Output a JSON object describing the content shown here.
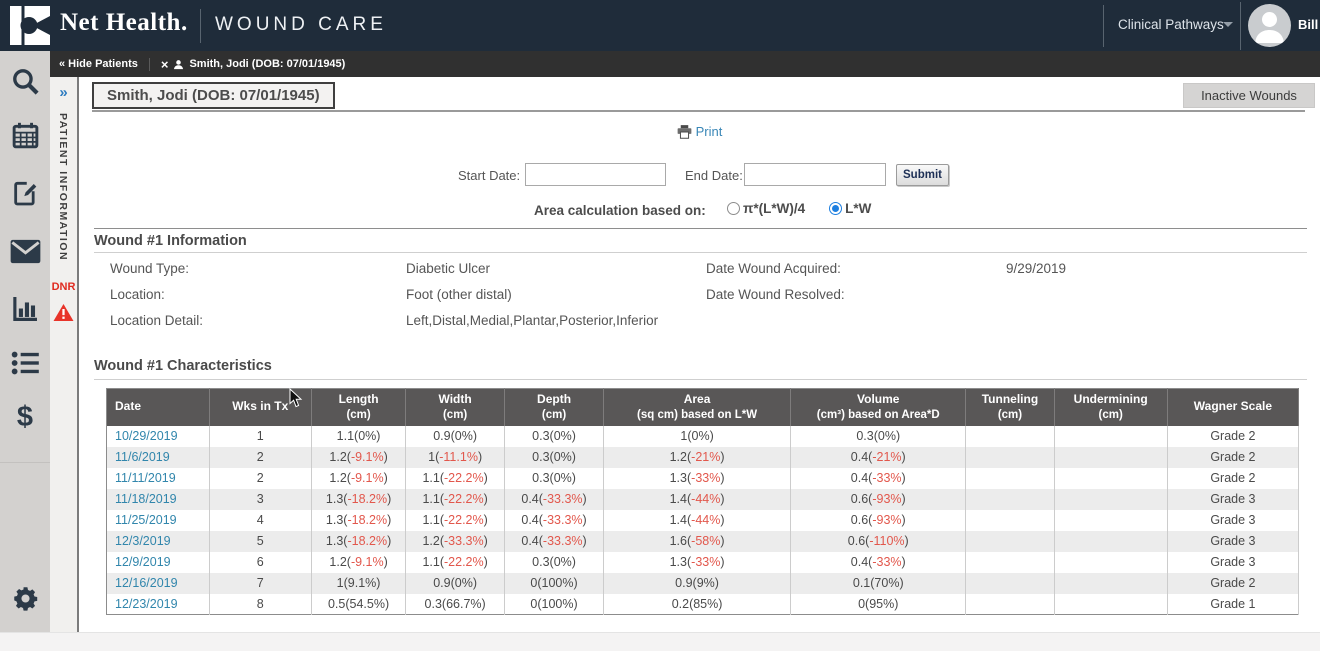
{
  "topbar": {
    "brand": "Net Health.",
    "product": "WOUND CARE",
    "nav_menu": "Clinical Pathways",
    "user_name": "Bill B"
  },
  "tabbar": {
    "hide_patients": "« Hide Patients",
    "close_glyph": "×",
    "patient_tab": "Smith, Jodi (DOB: 07/01/1945)"
  },
  "sidebar": {
    "icons": [
      "search-icon",
      "calendar-icon",
      "clipboard-edit-icon",
      "mail-icon",
      "bar-chart-icon",
      "list-icon",
      "billing-dollar-icon",
      "settings-gear-icon"
    ],
    "dollar_glyph": "$"
  },
  "patient_panel": {
    "collapse_glyph": "»",
    "label": "PATIENT INFORMATION",
    "dnr": "DNR"
  },
  "page": {
    "patient_title": "Smith, Jodi (DOB: 07/01/1945)",
    "inactive_wounds_button": "Inactive Wounds",
    "print_link": "Print"
  },
  "filters": {
    "start_date_label": "Start Date:",
    "start_date_value": "",
    "end_date_label": "End Date:",
    "end_date_value": "",
    "submit_button": "Submit",
    "area_calc_label": "Area calculation based on:",
    "radio_options": [
      {
        "label": "π*(L*W)/4",
        "selected": false
      },
      {
        "label": "L*W",
        "selected": true
      }
    ]
  },
  "info": {
    "title": "Wound #1 Information",
    "left": [
      {
        "label": "Wound Type:",
        "value": "Diabetic Ulcer"
      },
      {
        "label": "Location:",
        "value": "Foot (other distal)"
      },
      {
        "label": "Location Detail:",
        "value": "Left,Distal,Medial,Plantar,Posterior,Inferior"
      }
    ],
    "right": [
      {
        "label": "Date Wound Acquired:",
        "value": "9/29/2019"
      },
      {
        "label": "Date Wound Resolved:",
        "value": ""
      }
    ]
  },
  "characteristics": {
    "title": "Wound #1 Characteristics",
    "columns": [
      {
        "label": "Date",
        "sub": ""
      },
      {
        "label": "Wks in Tx",
        "sub": ""
      },
      {
        "label": "Length",
        "sub": "(cm)"
      },
      {
        "label": "Width",
        "sub": "(cm)"
      },
      {
        "label": "Depth",
        "sub": "(cm)"
      },
      {
        "label": "Area",
        "sub": "(sq cm) based on L*W"
      },
      {
        "label": "Volume",
        "sub": "(cm³) based on Area*D"
      },
      {
        "label": "Tunneling",
        "sub": "(cm)"
      },
      {
        "label": "Undermining",
        "sub": "(cm)"
      },
      {
        "label": "Wagner Scale",
        "sub": ""
      }
    ],
    "rows": [
      {
        "date": "10/29/2019",
        "wks": "1",
        "measurements": [
          {
            "v": "1.1",
            "pct": "0%"
          },
          {
            "v": "0.9",
            "pct": "0%"
          },
          {
            "v": "0.3",
            "pct": "0%"
          },
          {
            "v": "1",
            "pct": "0%"
          },
          {
            "v": "0.3",
            "pct": "0%"
          }
        ],
        "tunneling": "",
        "undermining": "",
        "wagner": "Grade 2"
      },
      {
        "date": "11/6/2019",
        "wks": "2",
        "measurements": [
          {
            "v": "1.2",
            "pct": "-9.1%"
          },
          {
            "v": "1",
            "pct": "-11.1%"
          },
          {
            "v": "0.3",
            "pct": "0%"
          },
          {
            "v": "1.2",
            "pct": "-21%"
          },
          {
            "v": "0.4",
            "pct": "-21%"
          }
        ],
        "tunneling": "",
        "undermining": "",
        "wagner": "Grade 2"
      },
      {
        "date": "11/11/2019",
        "wks": "2",
        "measurements": [
          {
            "v": "1.2",
            "pct": "-9.1%"
          },
          {
            "v": "1.1",
            "pct": "-22.2%"
          },
          {
            "v": "0.3",
            "pct": "0%"
          },
          {
            "v": "1.3",
            "pct": "-33%"
          },
          {
            "v": "0.4",
            "pct": "-33%"
          }
        ],
        "tunneling": "",
        "undermining": "",
        "wagner": "Grade 2"
      },
      {
        "date": "11/18/2019",
        "wks": "3",
        "measurements": [
          {
            "v": "1.3",
            "pct": "-18.2%"
          },
          {
            "v": "1.1",
            "pct": "-22.2%"
          },
          {
            "v": "0.4",
            "pct": "-33.3%"
          },
          {
            "v": "1.4",
            "pct": "-44%"
          },
          {
            "v": "0.6",
            "pct": "-93%"
          }
        ],
        "tunneling": "",
        "undermining": "",
        "wagner": "Grade 3"
      },
      {
        "date": "11/25/2019",
        "wks": "4",
        "measurements": [
          {
            "v": "1.3",
            "pct": "-18.2%"
          },
          {
            "v": "1.1",
            "pct": "-22.2%"
          },
          {
            "v": "0.4",
            "pct": "-33.3%"
          },
          {
            "v": "1.4",
            "pct": "-44%"
          },
          {
            "v": "0.6",
            "pct": "-93%"
          }
        ],
        "tunneling": "",
        "undermining": "",
        "wagner": "Grade 3"
      },
      {
        "date": "12/3/2019",
        "wks": "5",
        "measurements": [
          {
            "v": "1.3",
            "pct": "-18.2%"
          },
          {
            "v": "1.2",
            "pct": "-33.3%"
          },
          {
            "v": "0.4",
            "pct": "-33.3%"
          },
          {
            "v": "1.6",
            "pct": "-58%"
          },
          {
            "v": "0.6",
            "pct": "-110%"
          }
        ],
        "tunneling": "",
        "undermining": "",
        "wagner": "Grade 3"
      },
      {
        "date": "12/9/2019",
        "wks": "6",
        "measurements": [
          {
            "v": "1.2",
            "pct": "-9.1%"
          },
          {
            "v": "1.1",
            "pct": "-22.2%"
          },
          {
            "v": "0.3",
            "pct": "0%"
          },
          {
            "v": "1.3",
            "pct": "-33%"
          },
          {
            "v": "0.4",
            "pct": "-33%"
          }
        ],
        "tunneling": "",
        "undermining": "",
        "wagner": "Grade 3"
      },
      {
        "date": "12/16/2019",
        "wks": "7",
        "measurements": [
          {
            "v": "1",
            "pct": "9.1%"
          },
          {
            "v": "0.9",
            "pct": "0%"
          },
          {
            "v": "0",
            "pct": "100%"
          },
          {
            "v": "0.9",
            "pct": "9%"
          },
          {
            "v": "0.1",
            "pct": "70%"
          }
        ],
        "tunneling": "",
        "undermining": "",
        "wagner": "Grade 2"
      },
      {
        "date": "12/23/2019",
        "wks": "8",
        "measurements": [
          {
            "v": "0.5",
            "pct": "54.5%"
          },
          {
            "v": "0.3",
            "pct": "66.7%"
          },
          {
            "v": "0",
            "pct": "100%"
          },
          {
            "v": "0.2",
            "pct": "85%"
          },
          {
            "v": "0",
            "pct": "95%"
          }
        ],
        "tunneling": "",
        "undermining": "",
        "wagner": "Grade 1"
      }
    ]
  },
  "colors": {
    "navbar": "#1f2c3a",
    "tabbar": "#303030",
    "link_blue": "#3186ac",
    "negative_red": "#e2574c",
    "table_header": "#595757",
    "radio_selected_blue": "#1d7fe0",
    "dnr_red": "#e02b20"
  }
}
